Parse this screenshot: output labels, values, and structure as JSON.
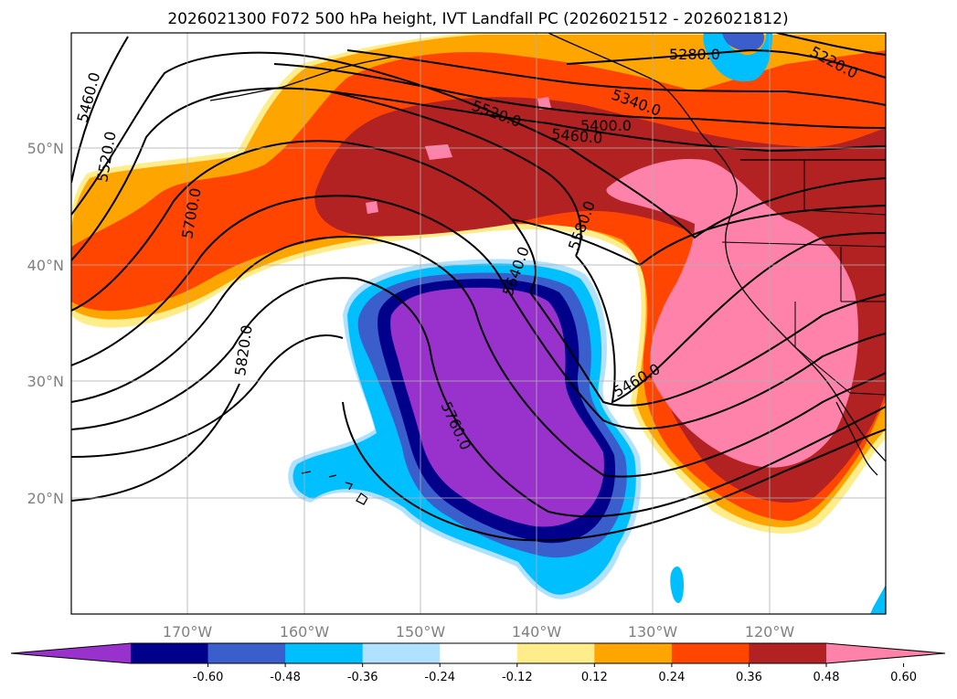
{
  "title": "2026021300 F072 500 hPa height, IVT Landfall PC (2026021512 - 2026021812)",
  "lat_ticks": [
    "50°N",
    "40°N",
    "30°N",
    "20°N"
  ],
  "lon_ticks": [
    "170°W",
    "160°W",
    "150°W",
    "140°W",
    "130°W",
    "120°W"
  ],
  "colorbar": {
    "tick_labels": [
      "-0.60",
      "-0.48",
      "-0.36",
      "-0.24",
      "-0.12",
      "0.12",
      "0.24",
      "0.36",
      "0.48",
      "0.60"
    ],
    "colors": [
      "#9932cc",
      "#00008b",
      "#3a5fcd",
      "#00bfff",
      "#b0e2ff",
      "#ffffff",
      "#ffec8b",
      "#ffa500",
      "#ff4500",
      "#b22222",
      "#ff82ab"
    ],
    "extend": "both"
  },
  "height_contour_labels": [
    "5280.0",
    "5220.0",
    "5460.0",
    "5520.0",
    "5400.0",
    "5340.0",
    "5460.0",
    "5520.0",
    "5700.0",
    "5580.0",
    "5640.0",
    "5820.0",
    "5460.0",
    "5760.0"
  ],
  "map_extent": {
    "lon": [
      -180,
      -110
    ],
    "lat": [
      10,
      60
    ]
  },
  "gridlines": true
}
